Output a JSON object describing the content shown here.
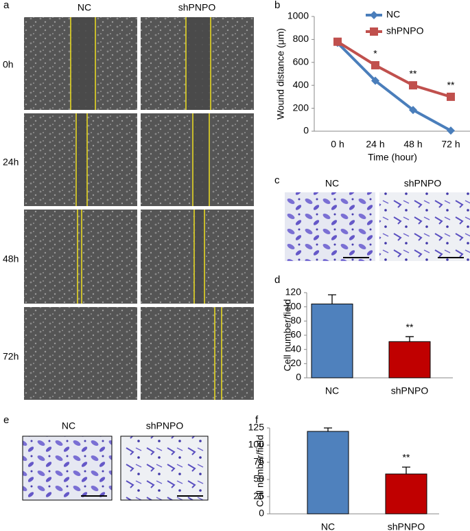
{
  "panel_labels": [
    "a",
    "b",
    "c",
    "d",
    "e",
    "f"
  ],
  "panel_a": {
    "columns": [
      "NC",
      "shPNPO"
    ],
    "rows": [
      "0h",
      "24h",
      "48h",
      "72h"
    ]
  },
  "panel_c": {
    "columns": [
      "NC",
      "shPNPO"
    ]
  },
  "panel_e": {
    "columns": [
      "NC",
      "shPNPO"
    ]
  },
  "chart_data": [
    {
      "type": "line",
      "xlabel": "Time (hour)",
      "ylabel": "Wound distance (μm)",
      "categories": [
        "0 h",
        "24 h",
        "48 h",
        "72 h"
      ],
      "series": [
        {
          "name": "NC",
          "color": "#4a7ebb",
          "marker": "diamond",
          "values": [
            770,
            440,
            185,
            5
          ]
        },
        {
          "name": "shPNPO",
          "color": "#c0504d",
          "marker": "square",
          "values": [
            780,
            575,
            400,
            300
          ]
        }
      ],
      "annotations": [
        null,
        "*",
        "**",
        "**"
      ],
      "ylim": [
        0,
        1000
      ],
      "yticks": [
        0,
        200,
        400,
        600,
        800,
        1000
      ],
      "legend": "top-right"
    },
    {
      "type": "bar",
      "ylabel": "Cell number/field",
      "categories": [
        "NC",
        "shPNPO"
      ],
      "values": [
        104,
        51
      ],
      "errors": [
        13,
        7
      ],
      "colors": [
        "#4f81bd",
        "#c00000"
      ],
      "annotations": [
        null,
        "**"
      ],
      "ylim": [
        0,
        120
      ],
      "yticks": [
        0,
        20,
        40,
        60,
        80,
        100,
        120
      ]
    },
    {
      "type": "bar",
      "ylabel": "Cell number/field",
      "categories": [
        "NC",
        "shPNPO"
      ],
      "values": [
        120,
        58
      ],
      "errors": [
        5,
        10
      ],
      "colors": [
        "#4f81bd",
        "#c00000"
      ],
      "annotations": [
        null,
        "**"
      ],
      "ylim": [
        0,
        125
      ],
      "yticks": [
        0,
        25,
        50,
        75,
        100,
        125
      ]
    }
  ]
}
